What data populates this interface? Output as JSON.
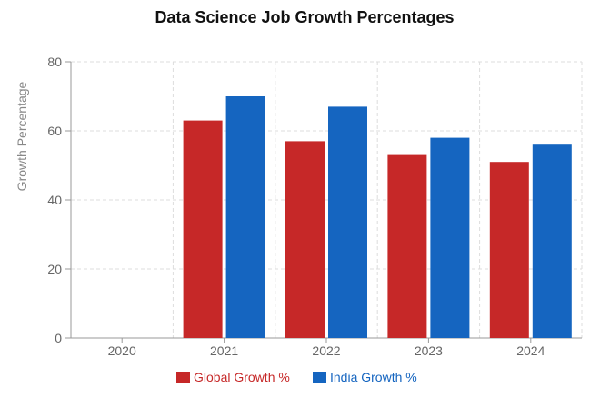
{
  "chart_data": {
    "type": "bar",
    "title": "Data Science Job Growth Percentages",
    "xlabel": "",
    "ylabel": "Growth Percentage",
    "ylim": [
      0,
      80
    ],
    "yticks": [
      0,
      20,
      40,
      60,
      80
    ],
    "grid": true,
    "legend_position": "bottom",
    "categories": [
      "2020",
      "2021",
      "2022",
      "2023",
      "2024"
    ],
    "series": [
      {
        "name": "Global Growth %",
        "color": "#c62828",
        "values": [
          null,
          63,
          57,
          53,
          51
        ]
      },
      {
        "name": "India Growth %",
        "color": "#1565c0",
        "values": [
          null,
          70,
          67,
          58,
          56
        ]
      }
    ]
  }
}
